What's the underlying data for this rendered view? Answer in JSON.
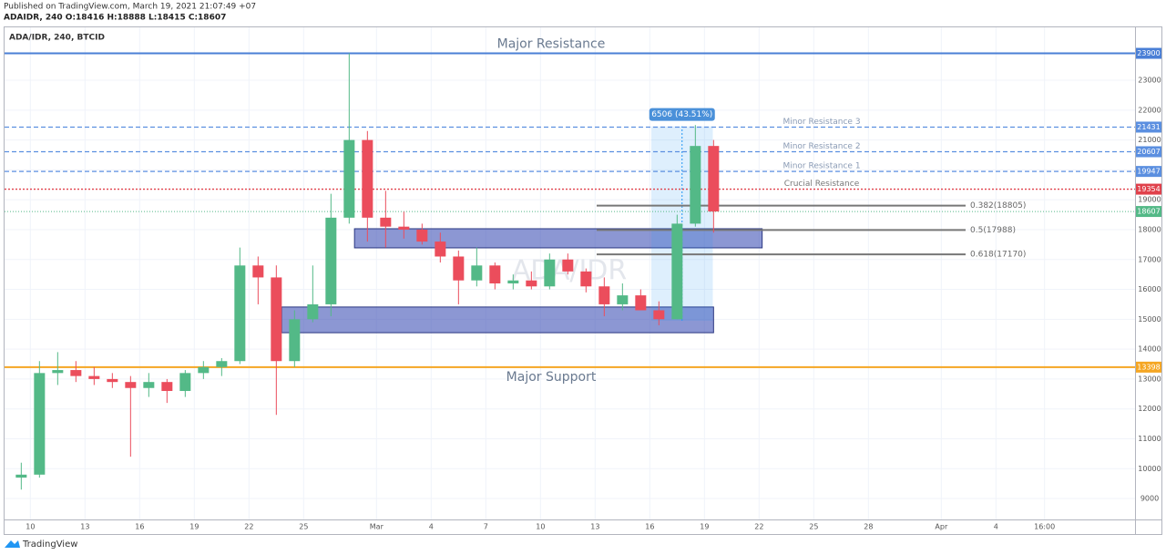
{
  "header": {
    "published": "Published on TradingView.com, March 19, 2021 21:07:49 +07",
    "quote": "ADAIDR, 240 O:18416 H:18888 L:18415 C:18607"
  },
  "footer": {
    "brand": "TradingView"
  },
  "chart_data": {
    "type": "candlestick",
    "legend": "ADA/IDR, 240, BTCID",
    "watermark": "ADA/IDR",
    "x": [
      "Feb 9",
      "Feb 10",
      "Feb 11",
      "Feb 12",
      "Feb 13",
      "Feb 14",
      "Feb 15",
      "Feb 16",
      "Feb 17",
      "Feb 18",
      "Feb 19",
      "Feb 20",
      "Feb 21",
      "Feb 22",
      "Feb 23",
      "Feb 24",
      "Feb 25",
      "Feb 26",
      "Feb 27",
      "Feb 28",
      "Mar 1",
      "Mar 2",
      "Mar 3",
      "Mar 4",
      "Mar 5",
      "Mar 6",
      "Mar 7",
      "Mar 8",
      "Mar 9",
      "Mar 10",
      "Mar 11",
      "Mar 12",
      "Mar 13",
      "Mar 14",
      "Mar 15",
      "Mar 16",
      "Mar 17",
      "Mar 18",
      "Mar 19"
    ],
    "open": [
      9700,
      9800,
      13200,
      13300,
      13100,
      13000,
      12900,
      12700,
      12900,
      12600,
      13200,
      13400,
      13600,
      16800,
      16400,
      13600,
      15000,
      15500,
      18400,
      21000,
      18400,
      18100,
      18000,
      17600,
      17100,
      16300,
      16800,
      16200,
      16300,
      16100,
      17000,
      16600,
      16100,
      15500,
      15800,
      15300,
      15000,
      18200,
      20800
    ],
    "high": [
      10200,
      13600,
      13900,
      13600,
      13400,
      13200,
      13100,
      13200,
      13000,
      13300,
      13600,
      13700,
      17400,
      17100,
      16800,
      15300,
      16800,
      19200,
      23900,
      21300,
      19300,
      18600,
      18200,
      17900,
      17300,
      17400,
      16900,
      16500,
      16600,
      17200,
      17200,
      16700,
      16400,
      16200,
      16000,
      15600,
      18500,
      21500,
      21000
    ],
    "low": [
      9300,
      9700,
      12800,
      12900,
      12800,
      12700,
      10400,
      12400,
      12200,
      12400,
      13000,
      13100,
      13500,
      15500,
      11800,
      13400,
      14900,
      15100,
      18200,
      17600,
      17400,
      17700,
      17500,
      16900,
      15500,
      16100,
      16000,
      16000,
      16000,
      16000,
      16500,
      15900,
      15100,
      15300,
      15300,
      14800,
      15000,
      18100,
      17900
    ],
    "close": [
      9800,
      13200,
      13300,
      13100,
      13000,
      12900,
      12700,
      12900,
      12600,
      13200,
      13400,
      13600,
      16800,
      16400,
      13600,
      15000,
      15500,
      18400,
      21000,
      18400,
      18100,
      18000,
      17600,
      17100,
      16300,
      16800,
      16200,
      16300,
      16100,
      17000,
      16600,
      16100,
      15500,
      15800,
      15300,
      15000,
      18200,
      20800,
      18607
    ],
    "up_color": "#53b987",
    "down_color": "#eb4d5c",
    "xlim": [
      "Feb 8 14:00",
      "Apr 11 14:00"
    ],
    "xticks": [
      {
        "value": "Feb 10",
        "label": "10"
      },
      {
        "value": "Feb 13",
        "label": "13"
      },
      {
        "value": "Feb 16",
        "label": "16"
      },
      {
        "value": "Feb 19",
        "label": "19"
      },
      {
        "value": "Feb 22",
        "label": "22"
      },
      {
        "value": "Feb 25",
        "label": "25"
      },
      {
        "value": "Mar 1",
        "label": "Mar"
      },
      {
        "value": "Mar 4",
        "label": "4"
      },
      {
        "value": "Mar 7",
        "label": "7"
      },
      {
        "value": "Mar 10",
        "label": "10"
      },
      {
        "value": "Mar 13",
        "label": "13"
      },
      {
        "value": "Mar 16",
        "label": "16"
      },
      {
        "value": "Mar 19",
        "label": "19"
      },
      {
        "value": "Mar 22",
        "label": "22"
      },
      {
        "value": "Mar 25",
        "label": "25"
      },
      {
        "value": "Mar 28",
        "label": "28"
      },
      {
        "value": "Apr 1",
        "label": "Apr"
      },
      {
        "value": "Apr 4",
        "label": "4"
      },
      {
        "value": "Apr 6 16:00",
        "label": "16:00"
      }
    ],
    "ylim": [
      8300,
      24770
    ],
    "yticks": [
      9000,
      10000,
      11000,
      12000,
      13000,
      14000,
      15000,
      16000,
      17000,
      18000,
      19000,
      20000,
      21000,
      22000,
      23000
    ],
    "grid": true,
    "last_price": 18607,
    "last_price_color": "#53b987",
    "levels": [
      {
        "name": "Major Resistance",
        "value": 23900,
        "color": "#4a7fd6",
        "style": "solid"
      },
      {
        "name": "Minor Resistance 3",
        "value": 21431,
        "color": "#5b8fe0",
        "style": "dashed"
      },
      {
        "name": "Minor Resistance 2",
        "value": 20607,
        "color": "#5b8fe0",
        "style": "dashed"
      },
      {
        "name": "Minor Resistance 1",
        "value": 19947,
        "color": "#5b8fe0",
        "style": "dashed"
      },
      {
        "name": "Crucial Resistance",
        "value": 19354,
        "color": "#e0414b",
        "style": "dotted"
      },
      {
        "name": "Major Support",
        "value": 13398,
        "color": "#f5a623",
        "style": "solid"
      }
    ],
    "fib": [
      {
        "label": "0.382(18805)",
        "value": 18805
      },
      {
        "label": "0.5(17988)",
        "value": 17988
      },
      {
        "label": "0.618(17170)",
        "value": 17170
      }
    ],
    "zones": [
      {
        "top": 18030,
        "bottom": 17390,
        "from": "Feb 27 19:00",
        "to": "Mar 22 04:00"
      },
      {
        "top": 15410,
        "bottom": 14550,
        "from": "Feb 23 19:00",
        "to": "Mar 19 12:00"
      }
    ],
    "measure": {
      "label": "6506 (43.51%)",
      "from": 14950,
      "to": 21456,
      "start": "Mar 16 02:00",
      "end": "Mar 19 11:00"
    }
  }
}
